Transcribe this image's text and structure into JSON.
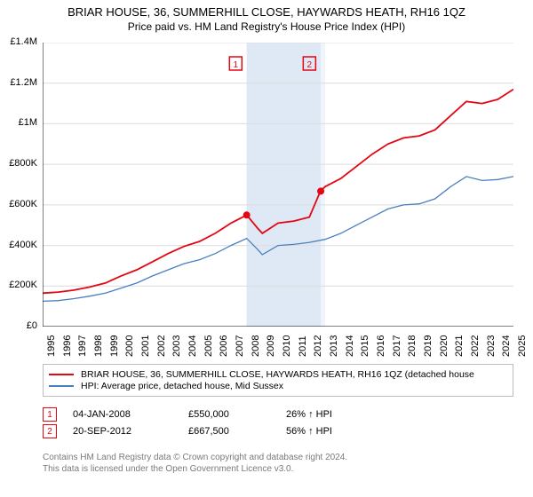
{
  "chart": {
    "title_line1": "BRIAR HOUSE, 36, SUMMERHILL CLOSE, HAYWARDS HEATH, RH16 1QZ",
    "title_line2": "Price paid vs. HM Land Registry's House Price Index (HPI)",
    "type": "line",
    "background_color": "#ffffff",
    "axis_color": "#000000",
    "grid_color": "#dcdcdc",
    "band_fill": "#dfe9f5",
    "band_fill_alt": "#f0f4fb",
    "x": {
      "min": 1995,
      "max": 2025,
      "ticks": [
        1995,
        1996,
        1997,
        1998,
        1999,
        2000,
        2001,
        2002,
        2003,
        2004,
        2005,
        2006,
        2007,
        2008,
        2009,
        2010,
        2011,
        2012,
        2013,
        2014,
        2015,
        2016,
        2017,
        2018,
        2019,
        2020,
        2021,
        2022,
        2023,
        2024,
        2025
      ],
      "label_rotation": -90,
      "label_fontsize": 11
    },
    "y": {
      "min": 0,
      "max": 1400000,
      "ticks": [
        0,
        200000,
        400000,
        600000,
        800000,
        1000000,
        1200000,
        1400000
      ],
      "tick_labels": [
        "£0",
        "£200K",
        "£400K",
        "£600K",
        "£800K",
        "£1M",
        "£1.2M",
        "£1.4M"
      ],
      "label_fontsize": 11
    },
    "shaded_band": {
      "from": 2008.0,
      "to": 2012.72
    },
    "shaded_band_alt": {
      "from": 2012.72,
      "to": 2013.0
    },
    "series": [
      {
        "id": "property",
        "label": "BRIAR HOUSE, 36, SUMMERHILL CLOSE, HAYWARDS HEATH, RH16 1QZ (detached house",
        "color": "#e30613",
        "width": 1.8,
        "data": [
          [
            1995,
            165000
          ],
          [
            1996,
            170000
          ],
          [
            1997,
            180000
          ],
          [
            1998,
            195000
          ],
          [
            1999,
            215000
          ],
          [
            2000,
            250000
          ],
          [
            2001,
            280000
          ],
          [
            2002,
            320000
          ],
          [
            2003,
            360000
          ],
          [
            2004,
            395000
          ],
          [
            2005,
            420000
          ],
          [
            2006,
            460000
          ],
          [
            2007,
            510000
          ],
          [
            2008,
            550000
          ],
          [
            2008.7,
            485000
          ],
          [
            2009,
            460000
          ],
          [
            2010,
            510000
          ],
          [
            2011,
            520000
          ],
          [
            2012,
            540000
          ],
          [
            2012.7,
            667500
          ],
          [
            2013,
            690000
          ],
          [
            2014,
            730000
          ],
          [
            2015,
            790000
          ],
          [
            2016,
            850000
          ],
          [
            2017,
            900000
          ],
          [
            2018,
            930000
          ],
          [
            2019,
            940000
          ],
          [
            2020,
            970000
          ],
          [
            2021,
            1040000
          ],
          [
            2022,
            1110000
          ],
          [
            2023,
            1100000
          ],
          [
            2024,
            1120000
          ],
          [
            2025,
            1170000
          ]
        ]
      },
      {
        "id": "hpi",
        "label": "HPI: Average price, detached house, Mid Sussex",
        "color": "#4a7fbf",
        "width": 1.3,
        "data": [
          [
            1995,
            125000
          ],
          [
            1996,
            128000
          ],
          [
            1997,
            138000
          ],
          [
            1998,
            150000
          ],
          [
            1999,
            165000
          ],
          [
            2000,
            190000
          ],
          [
            2001,
            215000
          ],
          [
            2002,
            250000
          ],
          [
            2003,
            280000
          ],
          [
            2004,
            310000
          ],
          [
            2005,
            330000
          ],
          [
            2006,
            360000
          ],
          [
            2007,
            400000
          ],
          [
            2008,
            435000
          ],
          [
            2008.7,
            380000
          ],
          [
            2009,
            355000
          ],
          [
            2010,
            400000
          ],
          [
            2011,
            405000
          ],
          [
            2012,
            415000
          ],
          [
            2013,
            430000
          ],
          [
            2014,
            460000
          ],
          [
            2015,
            500000
          ],
          [
            2016,
            540000
          ],
          [
            2017,
            580000
          ],
          [
            2018,
            600000
          ],
          [
            2019,
            605000
          ],
          [
            2020,
            630000
          ],
          [
            2021,
            690000
          ],
          [
            2022,
            740000
          ],
          [
            2023,
            720000
          ],
          [
            2024,
            725000
          ],
          [
            2025,
            740000
          ]
        ]
      }
    ],
    "sale_markers": [
      {
        "n": "1",
        "x": 2008.0,
        "y": 550000,
        "label_x": 2007.3
      },
      {
        "n": "2",
        "x": 2012.72,
        "y": 667500,
        "label_x": 2012.0
      }
    ],
    "marker_box_color": "#e30613",
    "marker_dot_radius": 4
  },
  "legend": {
    "items": [
      {
        "color": "#e30613",
        "label": "BRIAR HOUSE, 36, SUMMERHILL CLOSE, HAYWARDS HEATH, RH16 1QZ (detached house"
      },
      {
        "color": "#4a7fbf",
        "label": "HPI: Average price, detached house, Mid Sussex"
      }
    ]
  },
  "sales": [
    {
      "n": "1",
      "date": "04-JAN-2008",
      "price": "£550,000",
      "hpi": "26% ↑ HPI"
    },
    {
      "n": "2",
      "date": "20-SEP-2012",
      "price": "£667,500",
      "hpi": "56% ↑ HPI"
    }
  ],
  "footer": {
    "line1": "Contains HM Land Registry data © Crown copyright and database right 2024.",
    "line2": "This data is licensed under the Open Government Licence v3.0."
  }
}
